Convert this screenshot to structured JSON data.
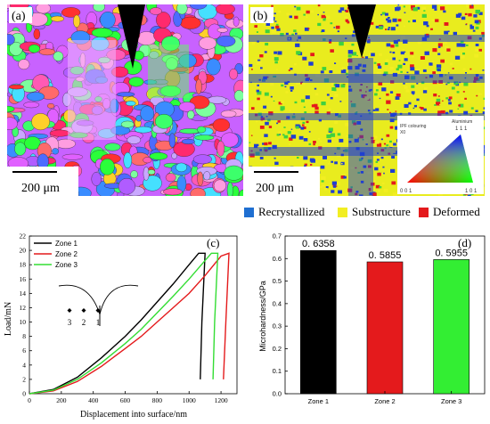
{
  "panel_a": {
    "label": "(a)",
    "scale_bar": "200 μm"
  },
  "panel_b": {
    "label": "(b)",
    "scale_bar": "200 μm",
    "ipf_title": "IPF colouring",
    "ipf_axis": "X0",
    "ipf_material": "Aluminium",
    "ipf_corners": {
      "top": "1 1 1",
      "left": "0 0 1",
      "right": "1 0 1"
    }
  },
  "map_legend": {
    "items": [
      {
        "label": "Recrystallized",
        "color": "#1f6fd1"
      },
      {
        "label": "Substructure",
        "color": "#f2ee22"
      },
      {
        "label": "Deformed",
        "color": "#e41a1c"
      }
    ]
  },
  "chart_data": [
    {
      "type": "line",
      "panel_label": "(c)",
      "xlabel": "Displacement into surface/nm",
      "ylabel": "Load/mN",
      "xlim": [
        0,
        1300
      ],
      "ylim": [
        0,
        22
      ],
      "xticks": [
        0,
        200,
        400,
        600,
        800,
        1000,
        1200
      ],
      "yticks": [
        0,
        2,
        4,
        6,
        8,
        10,
        12,
        14,
        16,
        18,
        20,
        22
      ],
      "indent_labels": [
        "3",
        "2",
        "1"
      ],
      "series": [
        {
          "name": "Zone 1",
          "color": "#000000",
          "x": [
            0,
            150,
            300,
            450,
            600,
            700,
            800,
            900,
            1000,
            1060,
            1100,
            1080,
            1070
          ],
          "y": [
            0,
            0.6,
            2.3,
            5.0,
            8.0,
            10.3,
            12.8,
            15.3,
            18.0,
            19.6,
            19.6,
            10,
            2
          ]
        },
        {
          "name": "Zone 2",
          "color": "#e41a1c",
          "x": [
            0,
            150,
            300,
            450,
            600,
            700,
            800,
            900,
            1000,
            1100,
            1200,
            1250,
            1230,
            1215
          ],
          "y": [
            0,
            0.4,
            1.7,
            3.8,
            6.3,
            8.0,
            10.0,
            12.0,
            14.0,
            16.5,
            19.2,
            19.6,
            10,
            2
          ]
        },
        {
          "name": "Zone 3",
          "color": "#33dd33",
          "x": [
            0,
            150,
            300,
            450,
            600,
            700,
            800,
            900,
            1000,
            1100,
            1140,
            1180,
            1160,
            1150
          ],
          "y": [
            0,
            0.5,
            2.0,
            4.3,
            7.0,
            9.0,
            11.3,
            13.6,
            16.0,
            18.6,
            19.6,
            19.6,
            10,
            2
          ]
        }
      ]
    },
    {
      "type": "bar",
      "panel_label": "(d)",
      "ylabel": "Microhardness/GPa",
      "ylim": [
        0,
        0.7
      ],
      "yticks": [
        0.0,
        0.1,
        0.2,
        0.3,
        0.4,
        0.5,
        0.6,
        0.7
      ],
      "categories": [
        "Zone 1",
        "Zone 2",
        "Zone 3"
      ],
      "values": [
        0.6358,
        0.5855,
        0.5955
      ],
      "value_labels": [
        "0. 6358",
        "0. 5855",
        "0. 5955"
      ],
      "colors": [
        "#000000",
        "#e41a1c",
        "#33ee33"
      ]
    }
  ]
}
